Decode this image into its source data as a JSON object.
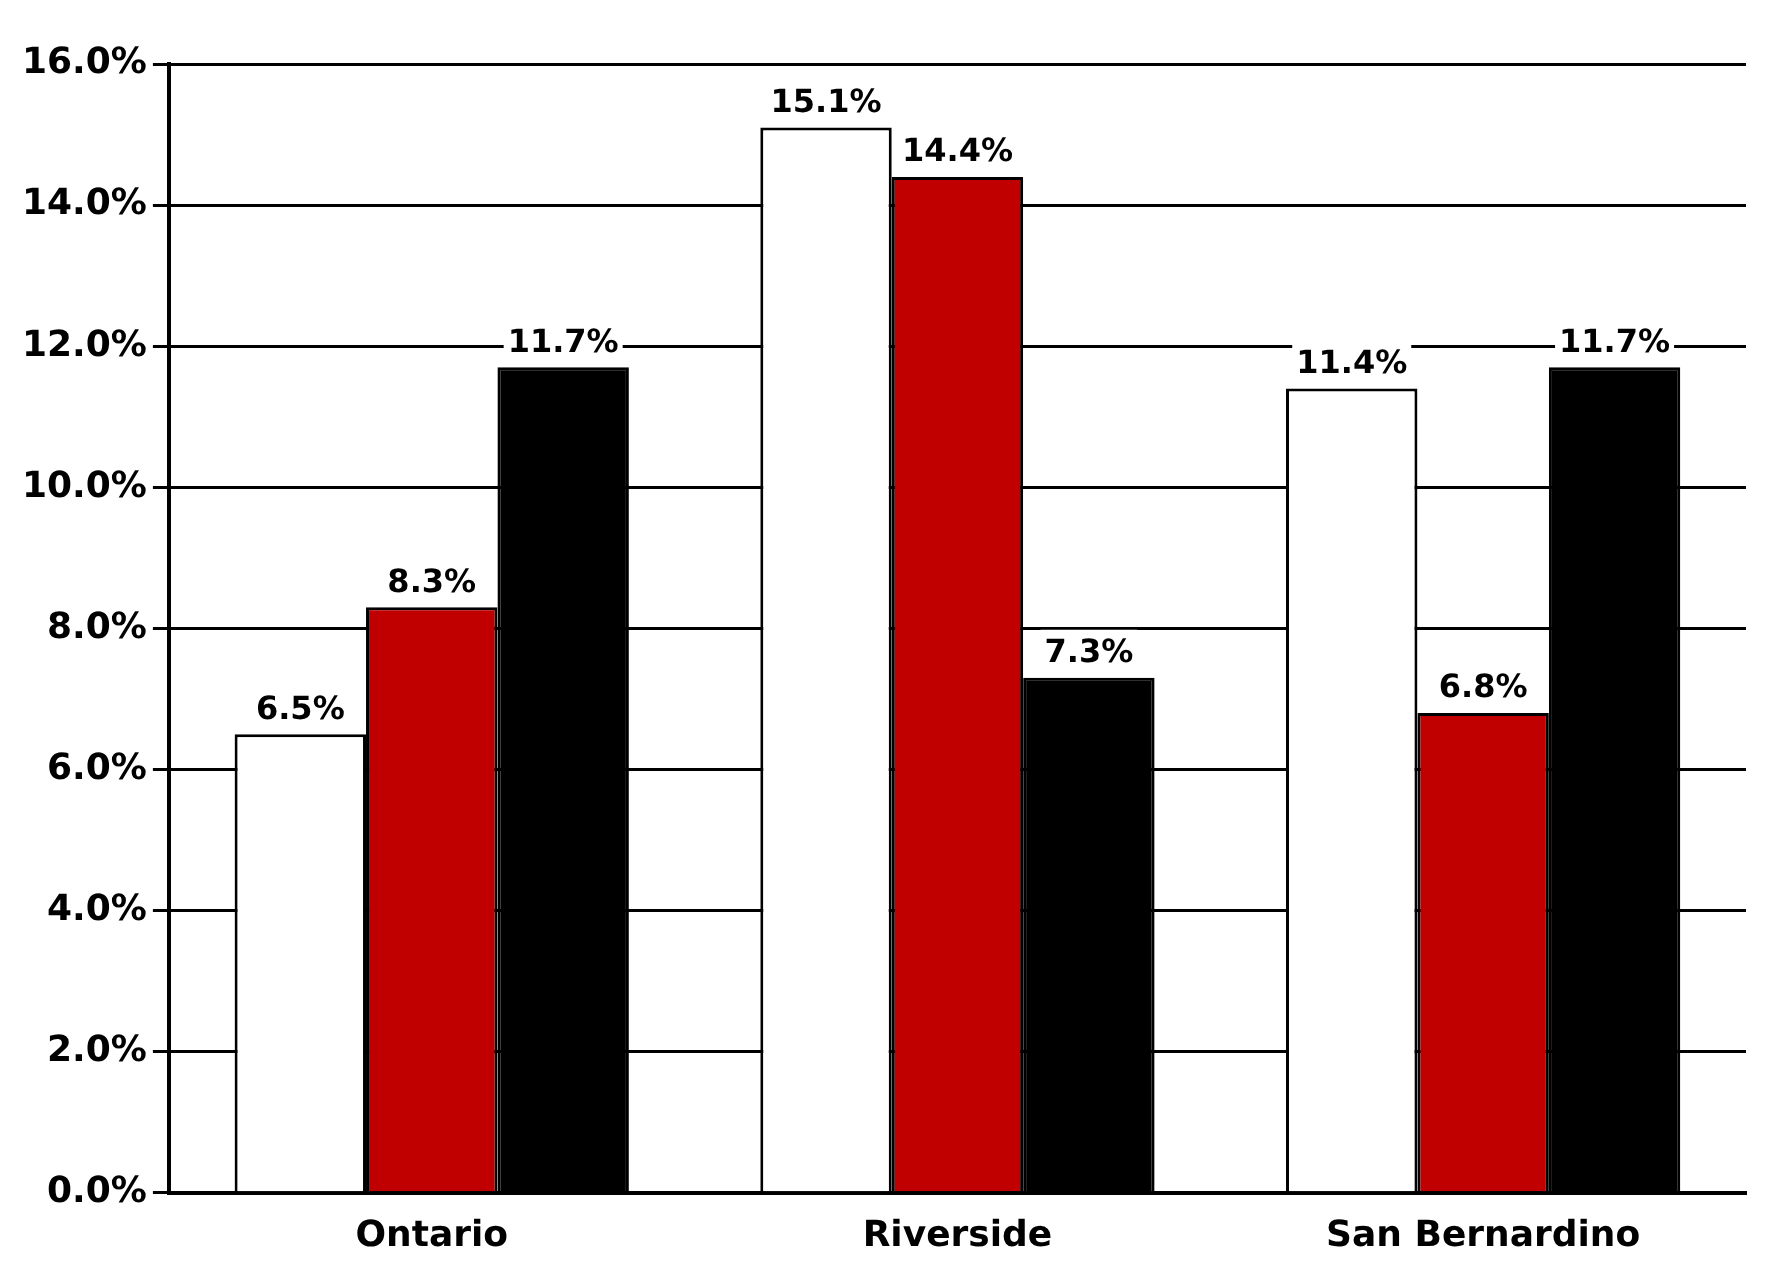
{
  "chart_data": {
    "type": "bar",
    "categories": [
      "Ontario",
      "Riverside",
      "San Bernardino"
    ],
    "series": [
      {
        "color": "#ffffff",
        "values": [
          6.5,
          15.1,
          11.4
        ],
        "value_labels": [
          "6.5%",
          "15.1%",
          "11.4%"
        ]
      },
      {
        "color": "#c00000",
        "values": [
          8.3,
          14.4,
          6.8
        ],
        "value_labels": [
          "8.3%",
          "14.4%",
          "6.8%"
        ]
      },
      {
        "color": "#000000",
        "values": [
          11.7,
          7.3,
          11.7
        ],
        "value_labels": [
          "11.7%",
          "7.3%",
          "11.7%"
        ]
      }
    ],
    "ylim": [
      0,
      16
    ],
    "yticks": [
      {
        "value": 0,
        "label": "0.0%"
      },
      {
        "value": 2,
        "label": "2.0%"
      },
      {
        "value": 4,
        "label": "4.0%"
      },
      {
        "value": 6,
        "label": "6.0%"
      },
      {
        "value": 8,
        "label": "8.0%"
      },
      {
        "value": 10,
        "label": "10.0%"
      },
      {
        "value": 12,
        "label": "12.0%"
      },
      {
        "value": 14,
        "label": "14.0%"
      },
      {
        "value": 16,
        "label": "16.0%"
      }
    ],
    "grid": "y",
    "legend": false
  }
}
